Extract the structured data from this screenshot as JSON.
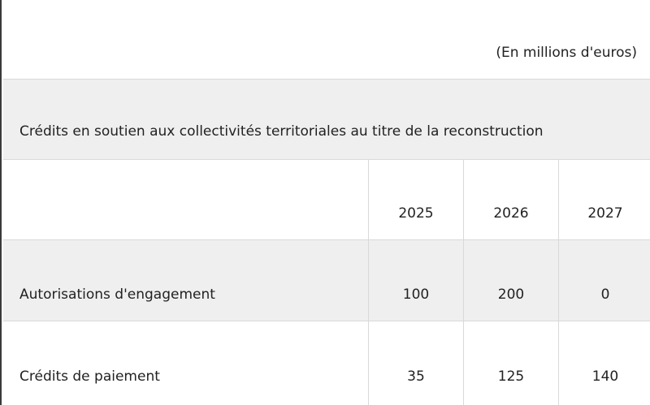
{
  "unit_note": "(En millions d'euros)",
  "table": {
    "title": "Crédits en soutien aux collectivités territoriales au titre de la reconstruction",
    "header_label": "",
    "years": [
      "2025",
      "2026",
      "2027"
    ],
    "rows": [
      {
        "label": "Autorisations d'engagement",
        "values": [
          "100",
          "200",
          "0"
        ]
      },
      {
        "label": "Crédits de paiement",
        "values": [
          "35",
          "125",
          "140"
        ]
      }
    ]
  }
}
